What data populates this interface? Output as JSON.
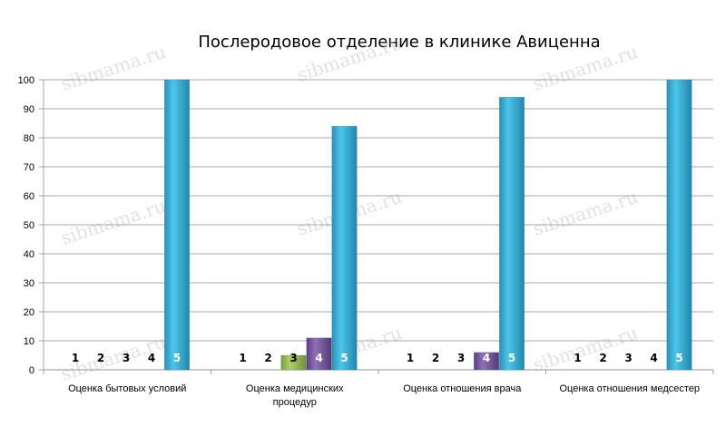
{
  "watermark": "sibmama.ru",
  "chart_data": {
    "type": "bar",
    "title": "Послеродовое отделение в клинике Авиценна",
    "xlabel": "",
    "ylabel": "",
    "ylim": [
      0,
      100
    ],
    "yticks": [
      0,
      10,
      20,
      30,
      40,
      50,
      60,
      70,
      80,
      90,
      100
    ],
    "grid": true,
    "legend": "none",
    "categories": [
      [
        "Оценка бытовых условий"
      ],
      [
        "Оценка медицинских",
        "процедур"
      ],
      [
        "Оценка отношения врача"
      ],
      [
        "Оценка отношения медсестер"
      ]
    ],
    "series": [
      {
        "name": "1",
        "color": "#4f81bd",
        "values": [
          0,
          0,
          0,
          0
        ]
      },
      {
        "name": "2",
        "color": "#c0504d",
        "values": [
          0,
          0,
          0,
          0
        ]
      },
      {
        "name": "3",
        "color": "#9bbb59",
        "values": [
          0,
          5,
          0,
          0
        ]
      },
      {
        "name": "4",
        "color": "#8064a2",
        "values": [
          0,
          11,
          6,
          0
        ]
      },
      {
        "name": "5",
        "color": "#3ab6dc",
        "values": [
          100,
          84,
          94,
          100
        ]
      }
    ]
  }
}
